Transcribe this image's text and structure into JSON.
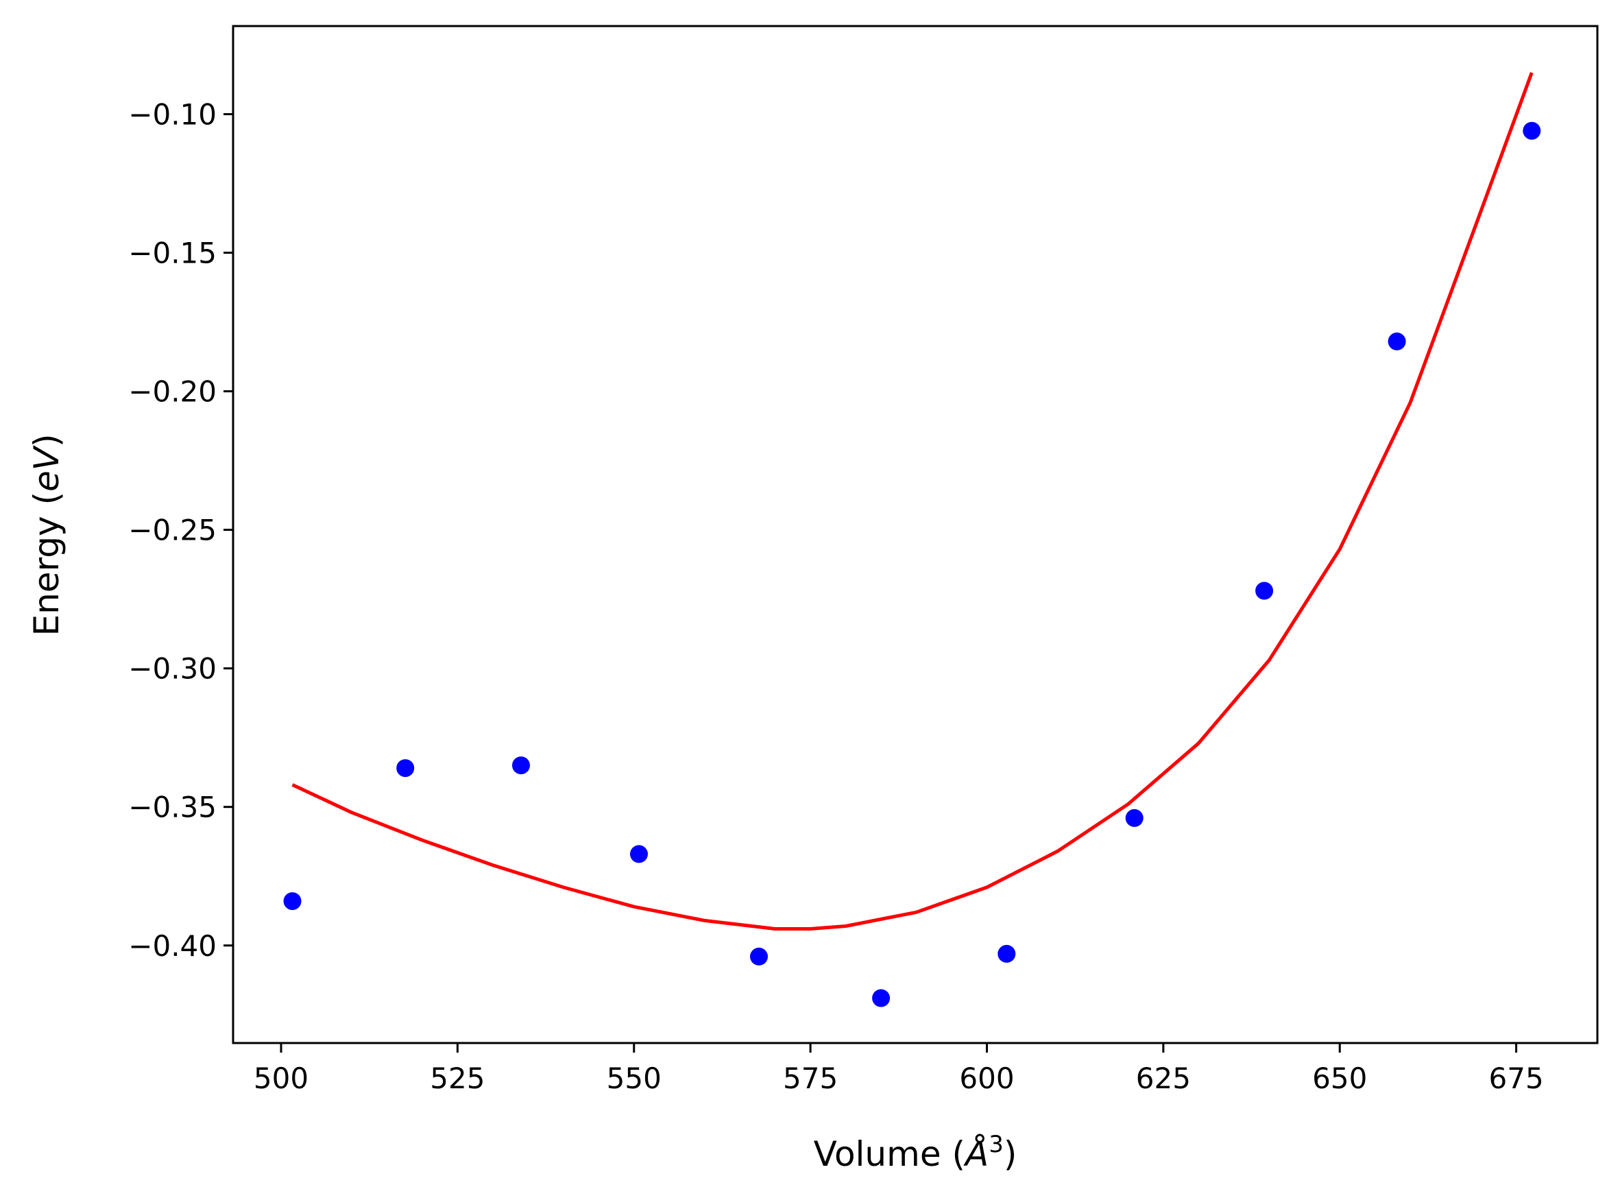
{
  "chart_data": {
    "type": "scatter",
    "xlabel": "Volume (",
    "xlabel_symbol": "Å",
    "xlabel_exponent": "3",
    "xlabel_close": ")",
    "ylabel": "Energy (",
    "ylabel_symbol": "eV",
    "ylabel_close": ")",
    "xlim": [
      493.2,
      686.5
    ],
    "ylim": [
      -0.4352,
      -0.0682
    ],
    "x_ticks": [
      500,
      525,
      550,
      575,
      600,
      625,
      650,
      675
    ],
    "x_tick_labels": [
      "500",
      "525",
      "550",
      "575",
      "600",
      "625",
      "650",
      "675"
    ],
    "y_ticks": [
      -0.1,
      -0.15,
      -0.2,
      -0.25,
      -0.3,
      -0.35,
      -0.4
    ],
    "y_tick_labels": [
      "−0.10",
      "−0.15",
      "−0.20",
      "−0.25",
      "−0.30",
      "−0.35",
      "−0.40"
    ],
    "grid": false,
    "series": [
      {
        "kind": "scatter",
        "color": "#0000ff",
        "x": [
          501.6,
          517.6,
          534.0,
          550.7,
          567.7,
          585.0,
          602.8,
          620.9,
          639.3,
          658.1,
          677.2
        ],
        "y": [
          -0.384,
          -0.336,
          -0.335,
          -0.367,
          -0.404,
          -0.419,
          -0.403,
          -0.354,
          -0.272,
          -0.182,
          -0.106
        ]
      },
      {
        "kind": "line",
        "color": "#ff0000",
        "x": [
          501.6,
          510,
          520,
          530,
          540,
          550,
          560,
          570,
          575,
          580,
          590,
          600,
          610,
          620,
          630,
          640,
          650,
          660,
          670,
          677.2
        ],
        "y": [
          -0.342,
          -0.352,
          -0.362,
          -0.371,
          -0.379,
          -0.386,
          -0.391,
          -0.394,
          -0.394,
          -0.393,
          -0.388,
          -0.379,
          -0.366,
          -0.349,
          -0.327,
          -0.297,
          -0.257,
          -0.204,
          -0.135,
          -0.085
        ]
      }
    ]
  }
}
